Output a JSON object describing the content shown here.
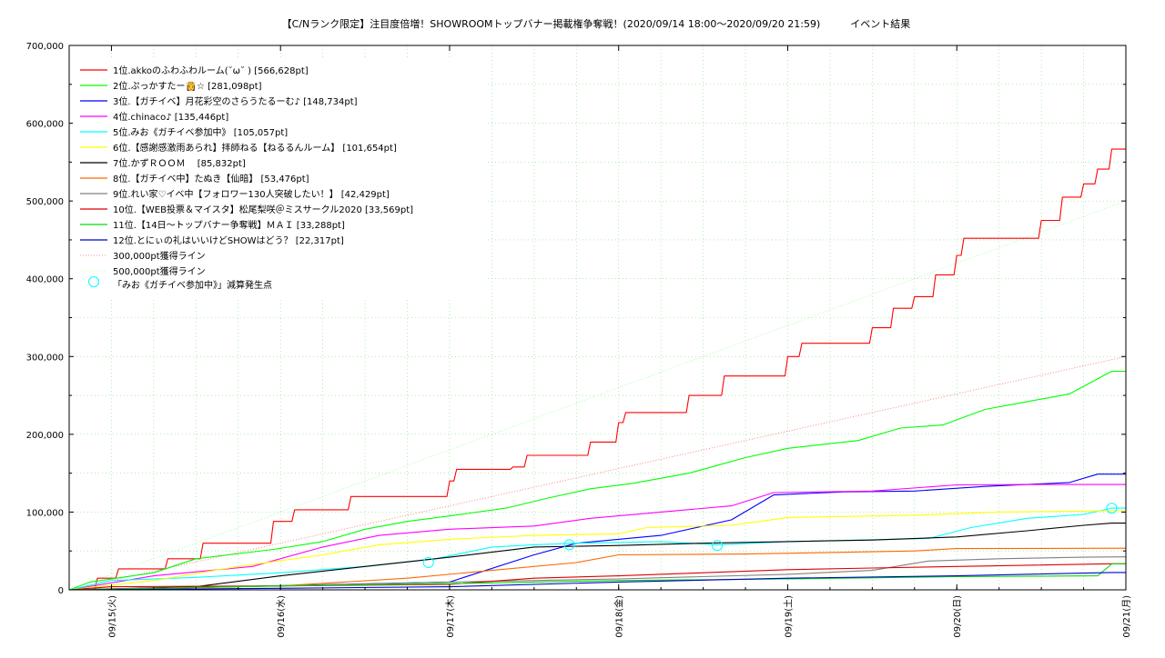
{
  "chart_data": {
    "type": "line",
    "title": "【C/Nランク限定】注目度倍増！SHOWROOMトップバナー掲載権争奪戦！(2020/09/14 18:00～2020/09/20 21:59)　　　イベント結果",
    "xlabel": "",
    "ylabel": "",
    "x_range": [
      "2020-09-14 18:00",
      "2020-09-21 00:00"
    ],
    "x_ticks": [
      {
        "x": "2020-09-15 00:00",
        "label": "09/15(火)"
      },
      {
        "x": "2020-09-16 00:00",
        "label": "09/16(水)"
      },
      {
        "x": "2020-09-17 00:00",
        "label": "09/17(木)"
      },
      {
        "x": "2020-09-18 00:00",
        "label": "09/18(金)"
      },
      {
        "x": "2020-09-19 00:00",
        "label": "09/19(土)"
      },
      {
        "x": "2020-09-20 00:00",
        "label": "09/20(日)"
      },
      {
        "x": "2020-09-21 00:00",
        "label": "09/21(月)"
      }
    ],
    "ylim": [
      0,
      700000
    ],
    "y_ticks": [
      {
        "value": 0,
        "label": "0"
      },
      {
        "value": 100000,
        "label": "100,000"
      },
      {
        "value": 200000,
        "label": "200,000"
      },
      {
        "value": 300000,
        "label": "300,000"
      },
      {
        "value": 400000,
        "label": "400,000"
      },
      {
        "value": 500000,
        "label": "500,000"
      },
      {
        "value": 600000,
        "label": "600,000"
      },
      {
        "value": 700000,
        "label": "700,000"
      }
    ],
    "grid": true,
    "legend_position": "top-left",
    "series": [
      {
        "name": "1位.akkoのふわふわルーム(˘ω˘ ) [566,628pt]",
        "color": "#ff0000",
        "style": "step",
        "points": [
          [
            "2020-09-14 18:00",
            0
          ],
          [
            "2020-09-14 22:00",
            15000
          ],
          [
            "2020-09-15 01:00",
            27000
          ],
          [
            "2020-09-15 08:00",
            40000
          ],
          [
            "2020-09-15 13:00",
            60000
          ],
          [
            "2020-09-15 23:00",
            88000
          ],
          [
            "2020-09-16 02:00",
            103000
          ],
          [
            "2020-09-16 10:00",
            120000
          ],
          [
            "2020-09-16 23:00",
            120000
          ],
          [
            "2020-09-17 00:00",
            140000
          ],
          [
            "2020-09-17 01:00",
            155000
          ],
          [
            "2020-09-17 09:00",
            158000
          ],
          [
            "2020-09-17 11:00",
            173000
          ],
          [
            "2020-09-17 20:00",
            190000
          ],
          [
            "2020-09-18 00:00",
            215000
          ],
          [
            "2020-09-18 01:00",
            228000
          ],
          [
            "2020-09-18 10:00",
            250000
          ],
          [
            "2020-09-18 15:00",
            275000
          ],
          [
            "2020-09-19 00:00",
            300000
          ],
          [
            "2020-09-19 02:00",
            317000
          ],
          [
            "2020-09-19 09:00",
            317000
          ],
          [
            "2020-09-19 12:00",
            337000
          ],
          [
            "2020-09-19 15:00",
            362000
          ],
          [
            "2020-09-19 18:00",
            377000
          ],
          [
            "2020-09-19 21:00",
            405000
          ],
          [
            "2020-09-20 00:00",
            430000
          ],
          [
            "2020-09-20 01:00",
            452000
          ],
          [
            "2020-09-20 12:00",
            475000
          ],
          [
            "2020-09-20 15:00",
            505000
          ],
          [
            "2020-09-20 18:00",
            522000
          ],
          [
            "2020-09-20 20:00",
            541000
          ],
          [
            "2020-09-20 22:00",
            566628
          ],
          [
            "2020-09-21 00:00",
            566628
          ]
        ]
      },
      {
        "name": "2位.ぷっかすたー👸☆ [281,098pt]",
        "color": "#00ff00",
        "style": "line",
        "points": [
          [
            "2020-09-14 18:00",
            0
          ],
          [
            "2020-09-14 21:00",
            10000
          ],
          [
            "2020-09-15 06:00",
            22000
          ],
          [
            "2020-09-15 12:00",
            40000
          ],
          [
            "2020-09-15 23:00",
            52000
          ],
          [
            "2020-09-16 06:00",
            62000
          ],
          [
            "2020-09-16 12:00",
            78000
          ],
          [
            "2020-09-16 18:00",
            88000
          ],
          [
            "2020-09-17 00:00",
            95000
          ],
          [
            "2020-09-17 08:00",
            105000
          ],
          [
            "2020-09-17 14:00",
            118000
          ],
          [
            "2020-09-17 20:00",
            130000
          ],
          [
            "2020-09-18 02:00",
            137000
          ],
          [
            "2020-09-18 10:00",
            150000
          ],
          [
            "2020-09-18 18:00",
            170000
          ],
          [
            "2020-09-19 00:00",
            182000
          ],
          [
            "2020-09-19 10:00",
            192000
          ],
          [
            "2020-09-19 16:00",
            208000
          ],
          [
            "2020-09-19 22:00",
            212000
          ],
          [
            "2020-09-20 04:00",
            232000
          ],
          [
            "2020-09-20 10:00",
            242000
          ],
          [
            "2020-09-20 16:00",
            252000
          ],
          [
            "2020-09-20 22:00",
            281098
          ],
          [
            "2020-09-21 00:00",
            281098
          ]
        ]
      },
      {
        "name": "3位.【ガチイベ】月花彩空のさらうたるーむ♪ [148,734pt]",
        "color": "#0000ff",
        "style": "line",
        "points": [
          [
            "2020-09-14 18:00",
            0
          ],
          [
            "2020-09-15 12:00",
            3000
          ],
          [
            "2020-09-16 08:00",
            7000
          ],
          [
            "2020-09-17 00:00",
            10000
          ],
          [
            "2020-09-17 12:00",
            45000
          ],
          [
            "2020-09-17 18:00",
            60000
          ],
          [
            "2020-09-18 06:00",
            70000
          ],
          [
            "2020-09-18 16:00",
            90000
          ],
          [
            "2020-09-18 22:00",
            122000
          ],
          [
            "2020-09-19 08:00",
            126000
          ],
          [
            "2020-09-19 18:00",
            127000
          ],
          [
            "2020-09-20 04:00",
            133000
          ],
          [
            "2020-09-20 16:00",
            138000
          ],
          [
            "2020-09-20 20:00",
            148734
          ],
          [
            "2020-09-21 00:00",
            148734
          ]
        ]
      },
      {
        "name": "4位.chinaco♪ [135,446pt]",
        "color": "#ff00ff",
        "style": "line",
        "points": [
          [
            "2020-09-14 18:00",
            0
          ],
          [
            "2020-09-15 06:00",
            18000
          ],
          [
            "2020-09-15 20:00",
            30000
          ],
          [
            "2020-09-16 06:00",
            55000
          ],
          [
            "2020-09-16 14:00",
            70000
          ],
          [
            "2020-09-17 00:00",
            78000
          ],
          [
            "2020-09-17 12:00",
            82000
          ],
          [
            "2020-09-17 20:00",
            92000
          ],
          [
            "2020-09-18 06:00",
            100000
          ],
          [
            "2020-09-18 16:00",
            108000
          ],
          [
            "2020-09-18 22:00",
            125000
          ],
          [
            "2020-09-19 12:00",
            127000
          ],
          [
            "2020-09-20 00:00",
            135000
          ],
          [
            "2020-09-20 12:00",
            135446
          ],
          [
            "2020-09-21 00:00",
            135446
          ]
        ]
      },
      {
        "name": "5位.みお《ガチイベ参加中》 [105,057pt]",
        "color": "#00ffff",
        "style": "line",
        "points": [
          [
            "2020-09-14 18:00",
            0
          ],
          [
            "2020-09-15 00:00",
            12000
          ],
          [
            "2020-09-15 12:00",
            16000
          ],
          [
            "2020-09-16 00:00",
            22000
          ],
          [
            "2020-09-16 12:00",
            30000
          ],
          [
            "2020-09-16 22:00",
            40000
          ],
          [
            "2020-09-17 06:00",
            55000
          ],
          [
            "2020-09-17 12:00",
            58000
          ],
          [
            "2020-09-17 18:00",
            60000
          ],
          [
            "2020-09-18 06:00",
            62000
          ],
          [
            "2020-09-18 14:00",
            58000
          ],
          [
            "2020-09-19 00:00",
            62000
          ],
          [
            "2020-09-19 20:00",
            66000
          ],
          [
            "2020-09-20 02:00",
            80000
          ],
          [
            "2020-09-20 10:00",
            92000
          ],
          [
            "2020-09-20 18:00",
            97000
          ],
          [
            "2020-09-20 22:00",
            105057
          ],
          [
            "2020-09-21 00:00",
            105057
          ]
        ]
      },
      {
        "name": "6位.【感謝感激雨あられ】拝師ねる【ねるるんルーム】 [101,654pt]",
        "color": "#ffff00",
        "style": "line",
        "points": [
          [
            "2020-09-14 18:00",
            0
          ],
          [
            "2020-09-15 06:00",
            12000
          ],
          [
            "2020-09-15 18:00",
            30000
          ],
          [
            "2020-09-16 06:00",
            45000
          ],
          [
            "2020-09-16 14:00",
            58000
          ],
          [
            "2020-09-17 00:00",
            65000
          ],
          [
            "2020-09-17 12:00",
            70000
          ],
          [
            "2020-09-18 00:00",
            72000
          ],
          [
            "2020-09-18 04:00",
            80000
          ],
          [
            "2020-09-18 16:00",
            83000
          ],
          [
            "2020-09-19 00:00",
            93000
          ],
          [
            "2020-09-19 18:00",
            96000
          ],
          [
            "2020-09-20 06:00",
            100000
          ],
          [
            "2020-09-20 22:00",
            101654
          ],
          [
            "2020-09-21 00:00",
            101654
          ]
        ]
      },
      {
        "name": "7位.かずＲＯＯＭ　 [85,832pt]",
        "color": "#000000",
        "style": "line",
        "points": [
          [
            "2020-09-14 18:00",
            0
          ],
          [
            "2020-09-15 12:00",
            4000
          ],
          [
            "2020-09-16 00:00",
            18000
          ],
          [
            "2020-09-16 12:00",
            30000
          ],
          [
            "2020-09-17 00:00",
            42000
          ],
          [
            "2020-09-17 12:00",
            55000
          ],
          [
            "2020-09-18 00:00",
            57000
          ],
          [
            "2020-09-18 12:00",
            60000
          ],
          [
            "2020-09-19 00:00",
            62000
          ],
          [
            "2020-09-19 12:00",
            64000
          ],
          [
            "2020-09-20 00:00",
            68000
          ],
          [
            "2020-09-20 10:00",
            76000
          ],
          [
            "2020-09-20 18:00",
            83000
          ],
          [
            "2020-09-20 22:00",
            85832
          ],
          [
            "2020-09-21 00:00",
            85832
          ]
        ]
      },
      {
        "name": "8位.【ガチイベ中】たぬき【仙暗】 [53,476pt]",
        "color": "#ff6600",
        "style": "line",
        "points": [
          [
            "2020-09-14 18:00",
            0
          ],
          [
            "2020-09-15 12:00",
            3000
          ],
          [
            "2020-09-16 00:00",
            5000
          ],
          [
            "2020-09-16 18:00",
            15000
          ],
          [
            "2020-09-17 06:00",
            25000
          ],
          [
            "2020-09-17 18:00",
            35000
          ],
          [
            "2020-09-18 00:00",
            45000
          ],
          [
            "2020-09-18 18:00",
            46000
          ],
          [
            "2020-09-19 06:00",
            48000
          ],
          [
            "2020-09-19 18:00",
            50000
          ],
          [
            "2020-09-20 00:00",
            53000
          ],
          [
            "2020-09-21 00:00",
            53476
          ]
        ]
      },
      {
        "name": "9位.れい家♡イベ中【フォロワー130人突破したい！】 [42,429pt]",
        "color": "#808080",
        "style": "line",
        "points": [
          [
            "2020-09-14 18:00",
            0
          ],
          [
            "2020-09-16 00:00",
            5000
          ],
          [
            "2020-09-17 00:00",
            10000
          ],
          [
            "2020-09-18 00:00",
            14000
          ],
          [
            "2020-09-19 00:00",
            20000
          ],
          [
            "2020-09-19 12:00",
            25000
          ],
          [
            "2020-09-19 20:00",
            37000
          ],
          [
            "2020-09-20 06:00",
            40000
          ],
          [
            "2020-09-20 18:00",
            42000
          ],
          [
            "2020-09-21 00:00",
            42429
          ]
        ]
      },
      {
        "name": "10位.【WEB投票＆マイスタ】松尾梨咲＠ミスサークル2020 [33,569pt]",
        "color": "#dd0000",
        "style": "line",
        "points": [
          [
            "2020-09-14 18:00",
            0
          ],
          [
            "2020-09-15 00:00",
            4000
          ],
          [
            "2020-09-16 00:00",
            5000
          ],
          [
            "2020-09-17 00:00",
            7000
          ],
          [
            "2020-09-17 12:00",
            15000
          ],
          [
            "2020-09-18 00:00",
            18000
          ],
          [
            "2020-09-18 12:00",
            22000
          ],
          [
            "2020-09-19 00:00",
            26000
          ],
          [
            "2020-09-19 12:00",
            28000
          ],
          [
            "2020-09-20 00:00",
            30000
          ],
          [
            "2020-09-20 22:00",
            33569
          ],
          [
            "2020-09-21 00:00",
            33569
          ]
        ]
      },
      {
        "name": "11位.【14日～トップバナー争奪戦】ＭＡＩ [33,288pt]",
        "color": "#00dd00",
        "style": "line",
        "points": [
          [
            "2020-09-14 18:00",
            0
          ],
          [
            "2020-09-15 12:00",
            3000
          ],
          [
            "2020-09-16 00:00",
            5000
          ],
          [
            "2020-09-17 00:00",
            8000
          ],
          [
            "2020-09-18 00:00",
            12000
          ],
          [
            "2020-09-18 12:00",
            13000
          ],
          [
            "2020-09-19 00:00",
            14000
          ],
          [
            "2020-09-20 00:00",
            17000
          ],
          [
            "2020-09-20 20:00",
            18000
          ],
          [
            "2020-09-20 22:00",
            33288
          ],
          [
            "2020-09-21 00:00",
            33288
          ]
        ]
      },
      {
        "name": "12位.とにぃの礼はいいけどSHOWはどう？ [22,317pt]",
        "color": "#0000cc",
        "style": "line",
        "points": [
          [
            "2020-09-14 18:00",
            0
          ],
          [
            "2020-09-16 00:00",
            2000
          ],
          [
            "2020-09-17 00:00",
            4000
          ],
          [
            "2020-09-18 00:00",
            10000
          ],
          [
            "2020-09-19 00:00",
            15000
          ],
          [
            "2020-09-20 00:00",
            18000
          ],
          [
            "2020-09-20 22:00",
            22317
          ],
          [
            "2020-09-21 00:00",
            22317
          ]
        ]
      }
    ],
    "reference_lines": [
      {
        "name": "300,000pt獲得ライン",
        "color": "#ff6666",
        "target": 300000
      },
      {
        "name": "500,000pt獲得ライン",
        "color": "#99ff99",
        "target": 500000
      }
    ],
    "markers": {
      "name": "「みお《ガチイベ参加中》」減算発生点",
      "color": "#00ffff",
      "points": [
        [
          "2020-09-16 21:00",
          35000
        ],
        [
          "2020-09-17 17:00",
          58000
        ],
        [
          "2020-09-18 14:00",
          57000
        ],
        [
          "2020-09-20 22:00",
          105000
        ]
      ]
    }
  }
}
